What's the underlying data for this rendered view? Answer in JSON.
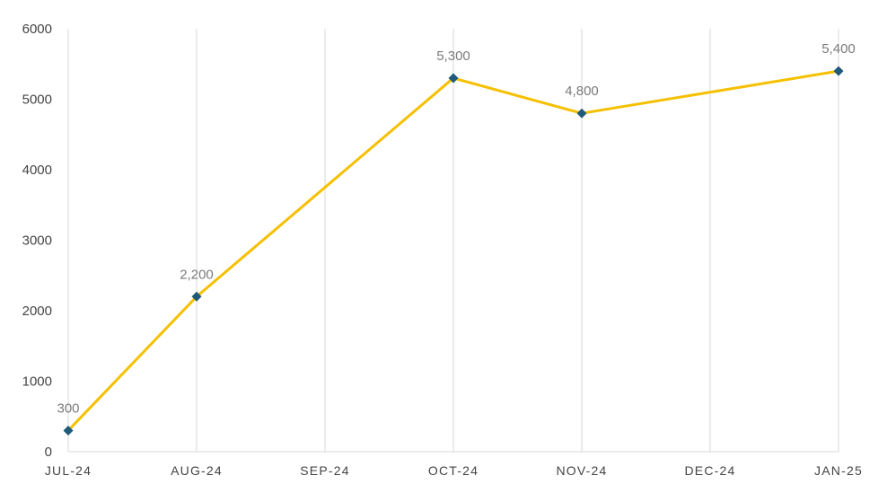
{
  "chart_data": {
    "type": "line",
    "title": "",
    "xlabel": "",
    "ylabel": "",
    "categories": [
      "JUL-24",
      "AUG-24",
      "SEP-24",
      "OCT-24",
      "NOV-24",
      "DEC-24",
      "JAN-25"
    ],
    "points": [
      {
        "category": "JUL-24",
        "value": 300,
        "label": "300"
      },
      {
        "category": "AUG-24",
        "value": 2200,
        "label": "2,200"
      },
      {
        "category": "OCT-24",
        "value": 5300,
        "label": "5,300"
      },
      {
        "category": "NOV-24",
        "value": 4800,
        "label": "4,800"
      },
      {
        "category": "JAN-25",
        "value": 5400,
        "label": "5,400"
      }
    ],
    "ylim": [
      0,
      6000
    ],
    "yticks": [
      0,
      1000,
      2000,
      3000,
      4000,
      5000,
      6000
    ],
    "ytick_labels": [
      "0",
      "1000",
      "2000",
      "3000",
      "4000",
      "5000",
      "6000"
    ],
    "grid": "vertical",
    "legend": "none",
    "colors": {
      "line": "#F5C000",
      "marker": "#1F5A7A",
      "grid": "#D9D9D9",
      "axis": "#D9D9D9",
      "tick_text": "#444444",
      "data_label_text": "#7A7A7A"
    }
  }
}
